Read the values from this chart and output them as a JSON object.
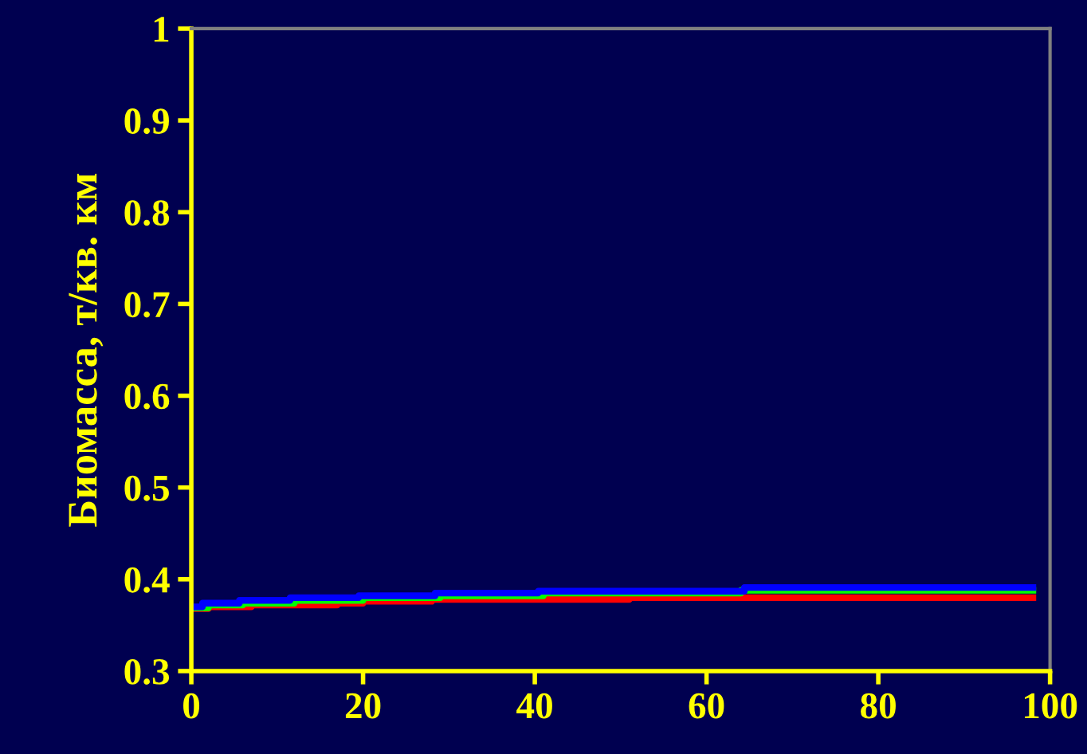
{
  "chart_data": {
    "type": "step",
    "ylabel": "Биомасса, т/кв. км",
    "xlim": [
      0,
      100
    ],
    "xticks": [
      0,
      20,
      40,
      60,
      80,
      100
    ],
    "ylim": [
      0.3,
      1
    ],
    "yticks": [
      0.3,
      0.4,
      0.5,
      0.6,
      0.7,
      0.8,
      0.9,
      1
    ],
    "grid": false,
    "legend": false,
    "marker": "none",
    "line_style": "solid",
    "series": [
      {
        "color": "#ff0000",
        "x": [
          0,
          2,
          7,
          17,
          20,
          28,
          51,
          98
        ],
        "values": [
          0.368,
          0.37,
          0.372,
          0.374,
          0.376,
          0.378,
          0.38,
          0.38
        ]
      },
      {
        "color": "#00ff00",
        "x": [
          0,
          2,
          6,
          12,
          20,
          29,
          41,
          64,
          98
        ],
        "values": [
          0.369,
          0.372,
          0.374,
          0.377,
          0.38,
          0.382,
          0.385,
          0.388,
          0.388
        ]
      },
      {
        "color": "#0000ff",
        "x": [
          0,
          1.3,
          5.6,
          11.5,
          19.5,
          28.4,
          40.4,
          64.4,
          98
        ],
        "values": [
          0.37,
          0.374,
          0.377,
          0.38,
          0.382,
          0.385,
          0.387,
          0.391,
          0.391
        ]
      }
    ]
  }
}
